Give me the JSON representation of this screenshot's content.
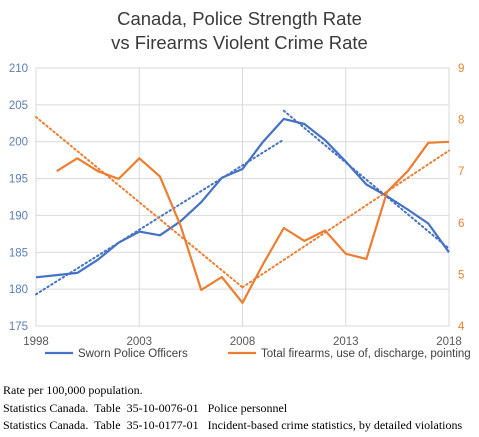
{
  "chart_data": {
    "type": "line",
    "title_lines": [
      "Canada, Police Strength Rate",
      "vs Firearms Violent Crime Rate"
    ],
    "x_ticks": [
      1998,
      2003,
      2008,
      2013,
      2018
    ],
    "xlim": [
      1998,
      2018
    ],
    "y_left": {
      "ylim": [
        175,
        210
      ],
      "ticks": [
        175,
        180,
        185,
        190,
        195,
        200,
        205,
        210
      ]
    },
    "y_right": {
      "ylim": [
        4,
        9
      ],
      "ticks": [
        4,
        5,
        6,
        7,
        8,
        9
      ]
    },
    "grid": true,
    "legend_position": "bottom",
    "series": [
      {
        "name": "Sworn Police Officers",
        "axis": "left",
        "color": "#4472C4",
        "x": [
          1998,
          1999,
          2000,
          2001,
          2002,
          2003,
          2004,
          2005,
          2006,
          2007,
          2008,
          2009,
          2010,
          2011,
          2012,
          2013,
          2014,
          2015,
          2016,
          2017,
          2018
        ],
        "values": [
          181.6,
          181.9,
          182.2,
          184.0,
          186.3,
          187.8,
          187.3,
          189.2,
          191.8,
          195.1,
          196.3,
          200.0,
          203.1,
          202.4,
          200.2,
          197.3,
          194.2,
          192.6,
          190.8,
          188.9,
          185.0
        ],
        "trendlines": [
          {
            "x": [
              1998,
              2010
            ],
            "values": [
              179.3,
              200.3
            ]
          },
          {
            "x": [
              2010,
              2018
            ],
            "values": [
              204.2,
              185.5
            ]
          }
        ]
      },
      {
        "name": "Total firearms, use of, discharge, pointing",
        "axis": "right",
        "color": "#ED7D31",
        "x": [
          1999,
          2000,
          2001,
          2002,
          2003,
          2004,
          2005,
          2006,
          2007,
          2008,
          2009,
          2010,
          2011,
          2012,
          2013,
          2014,
          2015,
          2016,
          2017,
          2018
        ],
        "values": [
          7.0,
          7.25,
          7.0,
          6.85,
          7.25,
          6.9,
          5.95,
          4.7,
          4.95,
          4.45,
          5.2,
          5.9,
          5.65,
          5.85,
          5.4,
          5.3,
          6.6,
          7.0,
          7.55,
          7.57
        ],
        "trendlines": [
          {
            "x": [
              1998,
              2008
            ],
            "values": [
              8.05,
              4.75
            ]
          },
          {
            "x": [
              2008,
              2018
            ],
            "values": [
              4.75,
              7.4
            ]
          }
        ]
      }
    ]
  },
  "notes": [
    "Rate per 100,000 population.",
    "Statistics Canada.  Table  35-10-0076-01   Police personnel",
    "Statistics Canada.  Table  35-10-0177-01   Incident-based crime statistics, by detailed violations"
  ],
  "colors": {
    "left_axis_text": "#5B7DB6",
    "right_axis_text": "#E8822F",
    "grid": "#D9D9D9",
    "axis_text": "#595959"
  }
}
